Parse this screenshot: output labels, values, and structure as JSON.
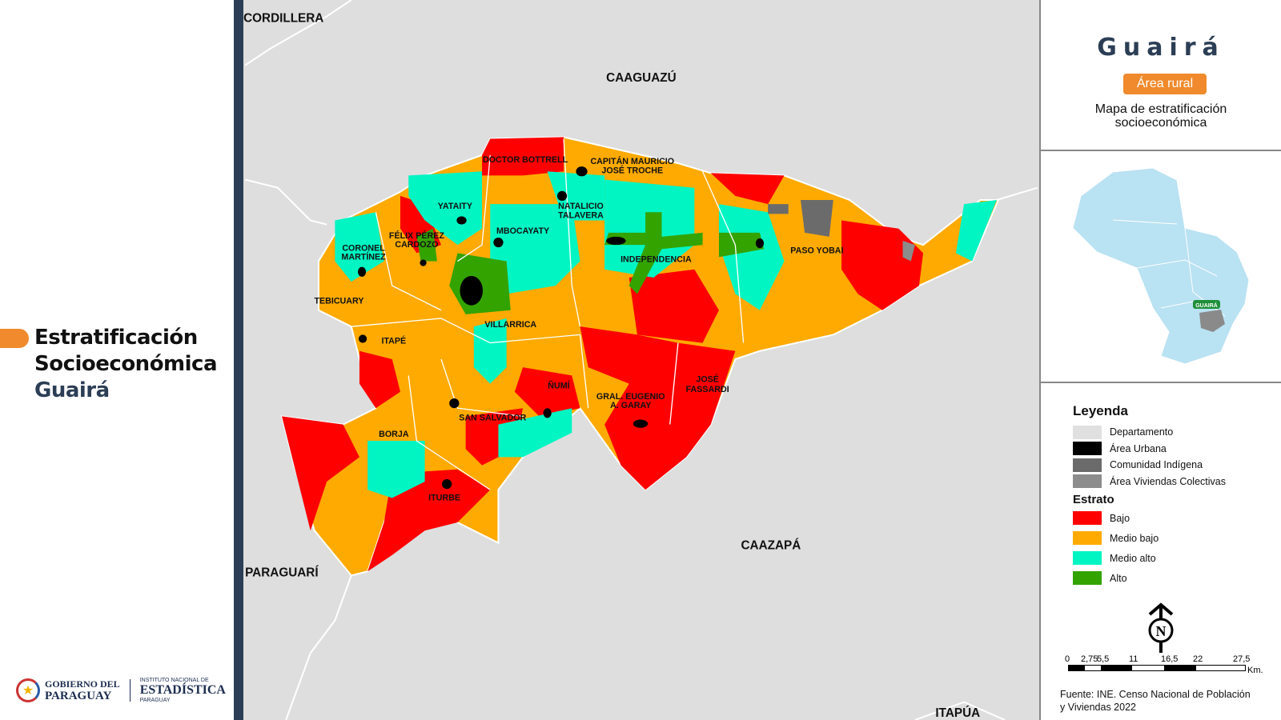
{
  "page": {
    "title_line1": "Estratificación",
    "title_line2": "Socioeconómica",
    "title_line3": "Guairá"
  },
  "logos": {
    "gobierno_line1": "GOBIERNO DEL",
    "gobierno_line2": "PARAGUAY",
    "ine_line1": "INSTITUTO NACIONAL DE",
    "ine_line2": "ESTADÍSTICA",
    "ine_line3": "PARAGUAY"
  },
  "panel": {
    "department": "Guairá",
    "badge": "Área rural",
    "subtitle_line1": "Mapa de estratificación",
    "subtitle_line2": "socioeconómica",
    "locator_label": "GUAIRÁ"
  },
  "map": {
    "neighbors": [
      "CORDILLERA",
      "CAAGUAZÚ",
      "PARAGUARÍ",
      "CAAZAPÁ",
      "ITAPÚA"
    ],
    "districts": [
      "DOCTOR BOTTRELL",
      "CAPITÁN MAURICIO",
      "JOSÉ TROCHE",
      "YATAITY",
      "NATALICIO",
      "TALAVERA",
      "FÉLIX PÉREZ",
      "CARDOZO",
      "CORONEL",
      "MARTÍNEZ",
      "MBOCAYATY",
      "INDEPENDENCIA",
      "PASO YOBAI",
      "TEBICUARY",
      "VILLARRICA",
      "ITAPÉ",
      "ÑUMÍ",
      "JOSÉ",
      "FASSARDI",
      "GRAL. EUGENIO",
      "A. GARAY",
      "SAN SALVADOR",
      "BORJA",
      "ITURBE"
    ]
  },
  "legend": {
    "title": "Leyenda",
    "items": [
      {
        "label": "Departamento",
        "color": "#e0e0e0"
      },
      {
        "label": "Área Urbana",
        "color": "#000000"
      },
      {
        "label": "Comunidad Indígena",
        "color": "#6b6b6b"
      },
      {
        "label": "Área Viviendas Colectivas",
        "color": "#8c8c8c"
      }
    ],
    "strata_title": "Estrato",
    "strata": [
      {
        "label": "Bajo",
        "color": "#ff0000"
      },
      {
        "label": "Medio bajo",
        "color": "#ffaa00"
      },
      {
        "label": "Medio alto",
        "color": "#00f5c3"
      },
      {
        "label": "Alto",
        "color": "#33a300"
      }
    ]
  },
  "scale": {
    "ticks": [
      "0",
      "2,75",
      "5,5",
      "11",
      "16,5",
      "22",
      "27,5"
    ],
    "unit": "Km."
  },
  "north": "N",
  "source": {
    "line1": "Fuente: INE. Censo Nacional de Población",
    "line2": "y Viviendas 2022"
  }
}
